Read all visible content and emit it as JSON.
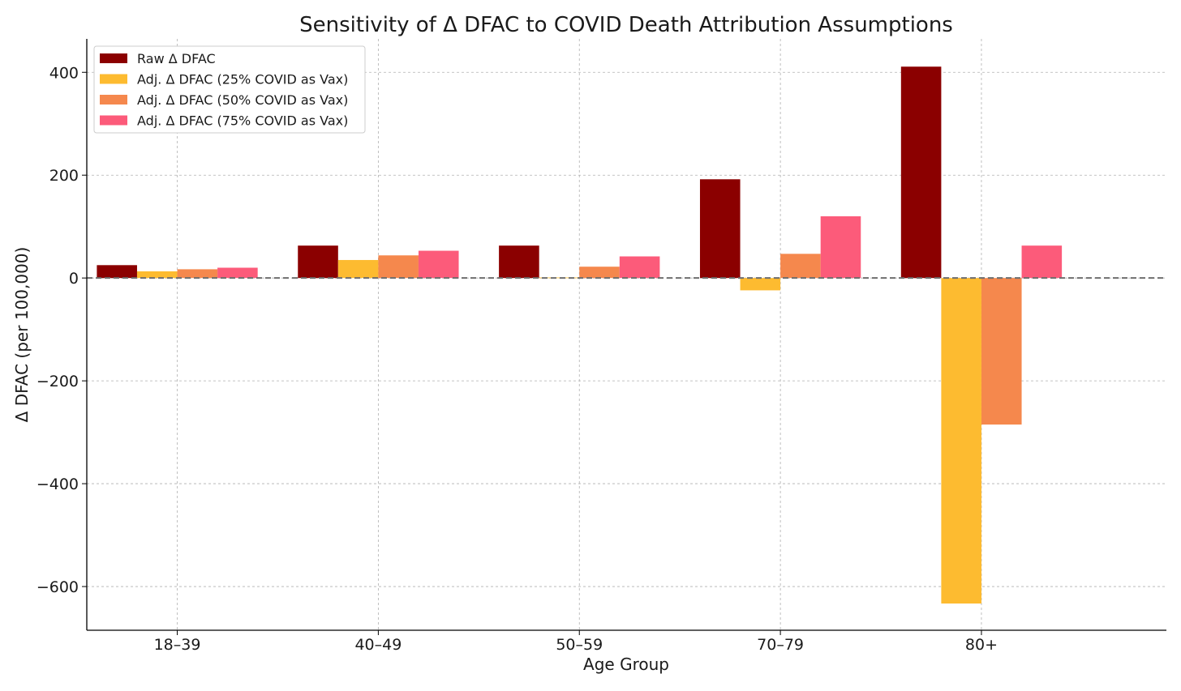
{
  "chart_data": {
    "type": "bar",
    "title": "Sensitivity of Δ DFAC to COVID Death Attribution Assumptions",
    "xlabel": "Age Group",
    "ylabel": "Δ DFAC (per 100,000)",
    "categories": [
      "18–39",
      "40–49",
      "50–59",
      "70–79",
      "80+"
    ],
    "ylim": [
      -685,
      465
    ],
    "yticks": [
      -600,
      -400,
      -200,
      0,
      200,
      400
    ],
    "ytick_labels": [
      "−600",
      "−400",
      "−200",
      "0",
      "200",
      "400"
    ],
    "grid": true,
    "zero_line": true,
    "legend_position": "top-left",
    "series": [
      {
        "name": "Raw Δ DFAC",
        "color": "#8b0000",
        "values": [
          25,
          63,
          63,
          192,
          411
        ]
      },
      {
        "name": "Adj. Δ DFAC (25% COVID as Vax)",
        "color": "#fdbb30",
        "values": [
          13,
          35,
          1,
          -24,
          -633
        ]
      },
      {
        "name": "Adj. Δ DFAC (50% COVID as Vax)",
        "color": "#f5884d",
        "values": [
          17,
          44,
          22,
          47,
          -285
        ]
      },
      {
        "name": "Adj. Δ DFAC (75% COVID as Vax)",
        "color": "#fc5b7a",
        "values": [
          20,
          53,
          42,
          120,
          63
        ]
      }
    ]
  }
}
